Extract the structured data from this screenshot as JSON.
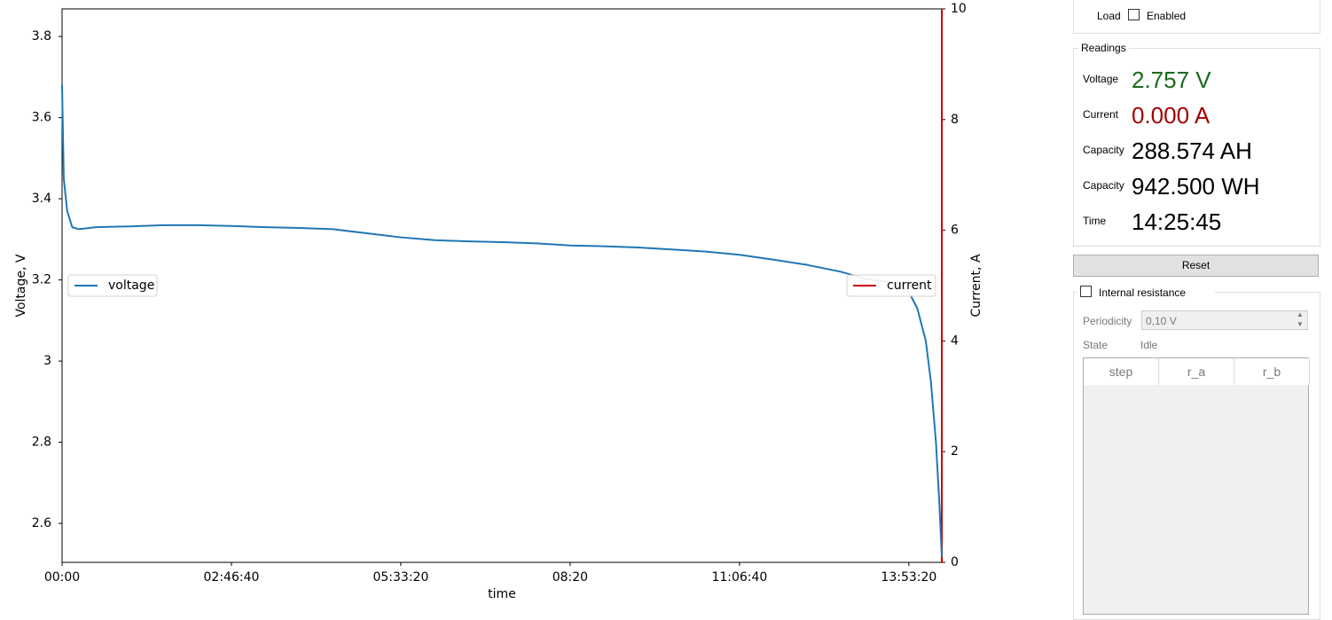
{
  "chart_data": {
    "type": "line",
    "x_label": "time",
    "y_label": "Voltage, V",
    "y2_label": "Current, A",
    "x": [
      0,
      100,
      300,
      600,
      1000,
      2000,
      4000,
      6000,
      8000,
      10000,
      12000,
      14000,
      16000,
      18000,
      20000,
      22000,
      24000,
      26000,
      28000,
      30000,
      32000,
      34000,
      36000,
      38000,
      40000,
      42000,
      44000,
      46000,
      47500,
      48500,
      49500,
      50000,
      50500,
      51000,
      51300,
      51600,
      51800,
      51945
    ],
    "series": [
      {
        "name": "voltage",
        "color": "#1f77b4",
        "values": [
          3.68,
          3.45,
          3.37,
          3.33,
          3.325,
          3.33,
          3.332,
          3.335,
          3.335,
          3.333,
          3.33,
          3.328,
          3.325,
          3.315,
          3.305,
          3.298,
          3.295,
          3.293,
          3.29,
          3.285,
          3.283,
          3.28,
          3.275,
          3.27,
          3.262,
          3.25,
          3.237,
          3.22,
          3.202,
          3.197,
          3.19,
          3.17,
          3.13,
          3.05,
          2.95,
          2.8,
          2.65,
          2.52
        ]
      },
      {
        "name": "current",
        "color": "#cc0000",
        "axis": "y2",
        "values": [
          null,
          null,
          null,
          null,
          null,
          null,
          null,
          null,
          null,
          null,
          null,
          null,
          null,
          null,
          null,
          null,
          null,
          null,
          null,
          null,
          null,
          null,
          null,
          null,
          null,
          null,
          null,
          null,
          null,
          null,
          null,
          null,
          null,
          null,
          null,
          null,
          null,
          0
        ]
      }
    ],
    "xlim": [
      0,
      51945
    ],
    "xticks": [
      {
        "value": 0,
        "label": "00:00"
      },
      {
        "value": 10000,
        "label": "02:46:40"
      },
      {
        "value": 20000,
        "label": "05:33:20"
      },
      {
        "value": 30000,
        "label": "08:20"
      },
      {
        "value": 40000,
        "label": "11:06:40"
      },
      {
        "value": 50000,
        "label": "13:53:20"
      }
    ],
    "ylim": [
      2.504,
      3.868
    ],
    "yticks": [
      2.6,
      2.8,
      3.0,
      3.2,
      3.4,
      3.6,
      3.8
    ],
    "y2lim": [
      0,
      10
    ],
    "y2ticks": [
      0,
      2,
      4,
      6,
      8,
      10
    ],
    "y2_axis_color": "#cc0000",
    "legend_loc": "center left",
    "legend2_loc": "center right",
    "grid": false
  },
  "panel": {
    "load": {
      "label": "Load",
      "checkbox": "Enabled"
    },
    "readings": {
      "title": "Readings",
      "rows": [
        {
          "label": "Voltage",
          "value": "2.757 V",
          "color": "#1a6b1a"
        },
        {
          "label": "Current",
          "value": "0.000 A",
          "color": "#a50000"
        },
        {
          "label": "Capacity",
          "value": "288.574 AH",
          "color": "#000000"
        },
        {
          "label": "Capacity",
          "value": "942.500 WH",
          "color": "#000000"
        },
        {
          "label": "Time",
          "value": "14:25:45",
          "color": "#000000"
        }
      ]
    },
    "reset": "Reset",
    "internal_resistance": {
      "title": "Internal resistance",
      "periodicity_label": "Periodicity",
      "periodicity": "0,10 V",
      "state_label": "State",
      "state": "Idle",
      "columns": [
        "step",
        "r_a",
        "r_b"
      ]
    }
  }
}
